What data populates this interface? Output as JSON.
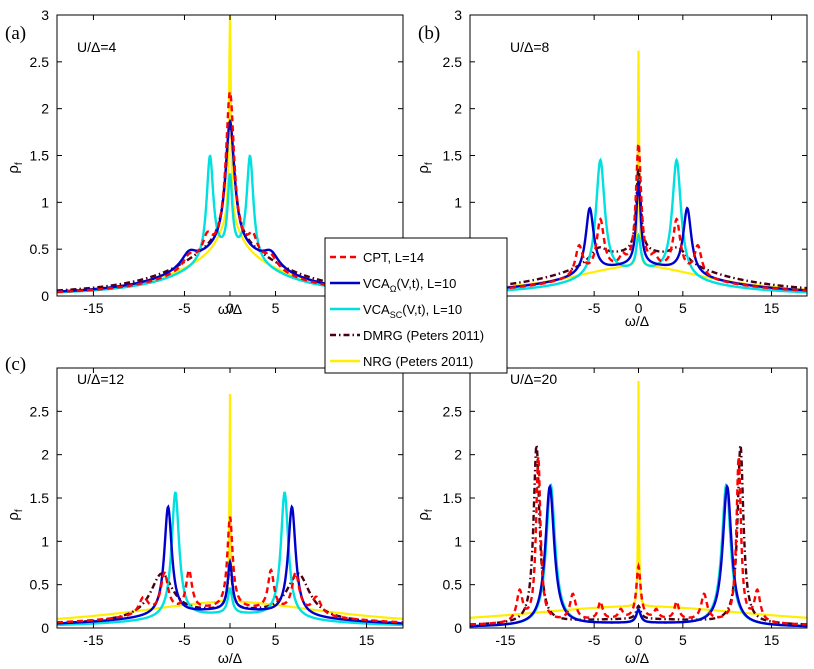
{
  "legend": {
    "entries": [
      {
        "label": "CPT, L=14",
        "color": "#ff0000",
        "dash": "6,4"
      },
      {
        "label_main": "VCA",
        "label_sub": "Ω",
        "label_rest": "(V,t), L=10",
        "color": "#0000cc",
        "dash": ""
      },
      {
        "label_main": "VCA",
        "label_sub": "SC",
        "label_rest": "(V,t), L=10",
        "color": "#00e0e0",
        "dash": ""
      },
      {
        "label": "DMRG (Peters 2011)",
        "color": "#4a0010",
        "dash": "6,3,1.5,3"
      },
      {
        "label": "NRG (Peters 2011)",
        "color": "#ffee00",
        "dash": ""
      }
    ]
  },
  "chart_data": [
    {
      "type": "line",
      "panel_label": "(a)",
      "annotation": "U/Δ=4",
      "xlabel": "ω/Δ",
      "ylabel_main": "ρ",
      "ylabel_sub": "f",
      "xlim": [
        -19,
        19
      ],
      "ylim": [
        0,
        3
      ],
      "xticks": [
        -15,
        -5,
        0,
        5
      ],
      "yticks": [
        0,
        0.5,
        1,
        1.5,
        2,
        2.5,
        3
      ],
      "series": [
        {
          "name": "CPT, L=14",
          "peaks": [
            [
              0,
              1.7,
              0.55
            ],
            [
              -2.5,
              0.2,
              0.6
            ],
            [
              2.5,
              0.2,
              0.6
            ],
            [
              -4.5,
              0.12,
              0.8
            ],
            [
              4.5,
              0.12,
              0.8
            ]
          ],
          "bg_amp": 0.45,
          "bg_width": 6
        },
        {
          "name": "VCAΩ(V,t), L=10",
          "peaks": [
            [
              0,
              1.35,
              0.6
            ],
            [
              -4.5,
              0.14,
              1.0
            ],
            [
              4.5,
              0.14,
              1.0
            ]
          ],
          "bg_amp": 0.5,
          "bg_width": 6
        },
        {
          "name": "VCASC(V,t), L=10",
          "peaks": [
            [
              -2.2,
              1.1,
              0.45
            ],
            [
              2.2,
              1.1,
              0.45
            ],
            [
              0,
              0.8,
              0.3
            ],
            [
              -1.0,
              0.0,
              0.3
            ]
          ],
          "bg_amp": 0.42,
          "bg_width": 6
        },
        {
          "name": "DMRG (Peters 2011)",
          "peaks": [
            [
              0,
              1.3,
              0.6
            ]
          ],
          "bg_amp": 0.55,
          "bg_width": 6.5
        },
        {
          "name": "NRG (Peters 2011)",
          "peaks": [
            [
              0,
              2.2,
              0.12
            ],
            [
              0,
              0.4,
              1.5
            ]
          ],
          "bg_amp": 0.4,
          "bg_width": 7
        }
      ]
    },
    {
      "type": "line",
      "panel_label": "(b)",
      "annotation": "U/Δ=8",
      "xlabel": "ω/Δ",
      "ylabel_main": "ρ",
      "ylabel_sub": "f",
      "xlim": [
        -19,
        19
      ],
      "ylim": [
        0,
        3
      ],
      "xticks": [
        -5,
        0,
        5,
        15
      ],
      "yticks": [
        0,
        0.5,
        1,
        1.5,
        2,
        2.5,
        3
      ],
      "series": [
        {
          "name": "CPT, L=14",
          "peaks": [
            [
              0,
              1.3,
              0.35
            ],
            [
              -4.3,
              0.55,
              0.5
            ],
            [
              4.3,
              0.55,
              0.5
            ],
            [
              -6.7,
              0.32,
              0.5
            ],
            [
              6.7,
              0.32,
              0.5
            ],
            [
              -1.8,
              0.1,
              0.4
            ],
            [
              1.8,
              0.1,
              0.4
            ]
          ],
          "bg_amp": 0.3,
          "bg_width": 9
        },
        {
          "name": "VCAΩ(V,t), L=10",
          "peaks": [
            [
              0,
              0.9,
              0.3
            ],
            [
              -5.5,
              0.7,
              0.55
            ],
            [
              5.5,
              0.7,
              0.55
            ]
          ],
          "bg_amp": 0.32,
          "bg_width": 9
        },
        {
          "name": "VCASC(V,t), L=10",
          "peaks": [
            [
              0,
              0.35,
              0.3
            ],
            [
              -4.3,
              1.25,
              0.6
            ],
            [
              4.3,
              1.25,
              0.6
            ]
          ],
          "bg_amp": 0.25,
          "bg_width": 8
        },
        {
          "name": "DMRG (Peters 2011)",
          "peaks": [
            [
              0,
              0.9,
              0.3
            ],
            [
              -4.5,
              0.15,
              1.2
            ],
            [
              4.5,
              0.15,
              1.2
            ]
          ],
          "bg_amp": 0.45,
          "bg_width": 9
        },
        {
          "name": "NRG (Peters 2011)",
          "peaks": [
            [
              0,
              2.3,
              0.08
            ]
          ],
          "bg_amp": 0.32,
          "bg_width": 10
        }
      ]
    },
    {
      "type": "line",
      "panel_label": "(c)",
      "annotation": "U/Δ=12",
      "xlabel": "ω/Δ",
      "ylabel_main": "ρ",
      "ylabel_sub": "f",
      "xlim": [
        -19,
        19
      ],
      "ylim": [
        0,
        3
      ],
      "xticks": [
        -15,
        -5,
        0,
        5,
        15
      ],
      "yticks": [
        0,
        0.5,
        1,
        1.5,
        2,
        2.5
      ],
      "series": [
        {
          "name": "CPT, L=14",
          "peaks": [
            [
              0,
              1.05,
              0.35
            ],
            [
              -7.2,
              0.45,
              0.5
            ],
            [
              7.2,
              0.45,
              0.5
            ],
            [
              -4.5,
              0.45,
              0.4
            ],
            [
              4.5,
              0.45,
              0.4
            ],
            [
              -9.5,
              0.2,
              0.6
            ],
            [
              9.5,
              0.2,
              0.6
            ]
          ],
          "bg_amp": 0.22,
          "bg_width": 12
        },
        {
          "name": "VCAΩ(V,t), L=10",
          "peaks": [
            [
              0,
              0.55,
              0.3
            ],
            [
              -6.8,
              1.25,
              0.5
            ],
            [
              6.8,
              1.25,
              0.5
            ]
          ],
          "bg_amp": 0.2,
          "bg_width": 11
        },
        {
          "name": "VCASC(V,t), L=10",
          "peaks": [
            [
              0,
              0.28,
              0.3
            ],
            [
              -6.0,
              1.45,
              0.5
            ],
            [
              6.0,
              1.45,
              0.5
            ]
          ],
          "bg_amp": 0.15,
          "bg_width": 10
        },
        {
          "name": "DMRG (Peters 2011)",
          "peaks": [
            [
              0,
              0.5,
              0.3
            ],
            [
              -7.5,
              0.5,
              1.5
            ],
            [
              7.5,
              0.5,
              1.5
            ]
          ],
          "bg_amp": 0.18,
          "bg_width": 11
        },
        {
          "name": "NRG (Peters 2011)",
          "peaks": [
            [
              0,
              2.4,
              0.07
            ]
          ],
          "bg_amp": 0.3,
          "bg_width": 14
        }
      ]
    },
    {
      "type": "line",
      "panel_label": "(d)",
      "annotation": "U/Δ=20",
      "xlabel": "ω/Δ",
      "ylabel_main": "ρ",
      "ylabel_sub": "f",
      "xlim": [
        -19,
        19
      ],
      "ylim": [
        0,
        3
      ],
      "xticks": [
        -15,
        -5,
        0,
        5,
        15
      ],
      "yticks": [
        0,
        0.5,
        1,
        1.5,
        2,
        2.5
      ],
      "series": [
        {
          "name": "CPT, L=14",
          "peaks": [
            [
              0,
              0.6,
              0.3
            ],
            [
              -11.3,
              1.9,
              0.3
            ],
            [
              11.3,
              1.9,
              0.3
            ],
            [
              -13.4,
              0.35,
              0.4
            ],
            [
              13.4,
              0.35,
              0.4
            ],
            [
              -7.4,
              0.3,
              0.4
            ],
            [
              7.4,
              0.3,
              0.4
            ],
            [
              -4.3,
              0.2,
              0.3
            ],
            [
              4.3,
              0.2,
              0.3
            ],
            [
              -2.0,
              0.1,
              0.3
            ],
            [
              2.0,
              0.1,
              0.3
            ]
          ],
          "bg_amp": 0.1,
          "bg_width": 14
        },
        {
          "name": "VCAΩ(V,t), L=10",
          "peaks": [
            [
              0,
              0.15,
              0.3
            ],
            [
              -10,
              1.6,
              0.6
            ],
            [
              10,
              1.6,
              0.6
            ]
          ],
          "bg_amp": 0.05,
          "bg_width": 12
        },
        {
          "name": "VCASC(V,t), L=10",
          "peaks": [
            [
              0,
              0.15,
              0.3
            ],
            [
              -9.9,
              1.62,
              0.6
            ],
            [
              9.9,
              1.62,
              0.6
            ]
          ],
          "bg_amp": 0.05,
          "bg_width": 12
        },
        {
          "name": "DMRG (Peters 2011)",
          "peaks": [
            [
              0,
              0.15,
              0.3
            ],
            [
              -11.5,
              2.05,
              0.4
            ],
            [
              11.5,
              2.05,
              0.4
            ]
          ],
          "bg_amp": 0.1,
          "bg_width": 14
        },
        {
          "name": "NRG (Peters 2011)",
          "peaks": [
            [
              0,
              2.6,
              0.06
            ]
          ],
          "bg_amp": 0.25,
          "bg_width": 18
        }
      ]
    }
  ]
}
